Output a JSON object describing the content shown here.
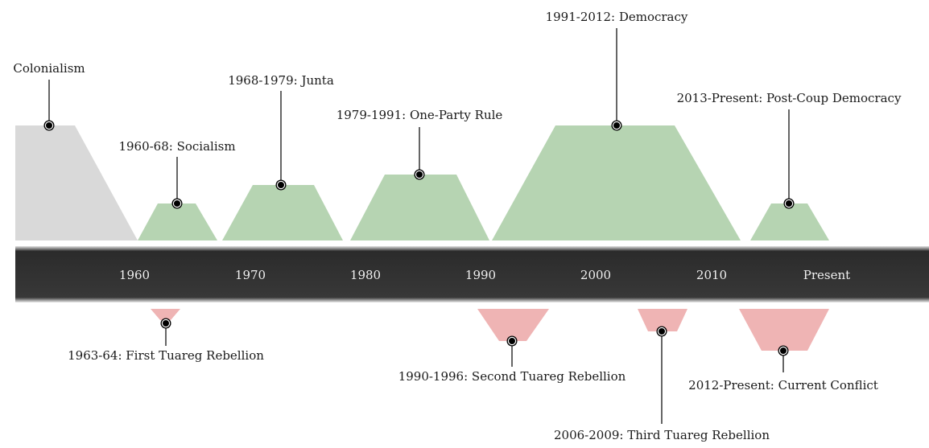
{
  "timeline": {
    "axis_ticks": [
      "1960",
      "1970",
      "1980",
      "1990",
      "2000",
      "2010",
      "Present"
    ],
    "periods": [
      {
        "label": "Colonialism",
        "color": "#d9d9d9",
        "kind": "colonial"
      },
      {
        "label": "1960-68: Socialism",
        "color": "#b6d4b2",
        "kind": "regime"
      },
      {
        "label": "1968-1979: Junta",
        "color": "#b6d4b2",
        "kind": "regime"
      },
      {
        "label": "1979-1991: One-Party Rule",
        "color": "#b6d4b2",
        "kind": "regime"
      },
      {
        "label": "1991-2012: Democracy",
        "color": "#b6d4b2",
        "kind": "regime"
      },
      {
        "label": "2013-Present: Post-Coup Democracy",
        "color": "#b6d4b2",
        "kind": "regime"
      }
    ],
    "conflicts": [
      {
        "label": "1963-64: First Tuareg Rebellion",
        "color": "#efb4b4"
      },
      {
        "label": "1990-1996: Second Tuareg Rebellion",
        "color": "#efb4b4"
      },
      {
        "label": "2006-2009: Third Tuareg Rebellion",
        "color": "#efb4b4"
      },
      {
        "label": "2012-Present: Current Conflict",
        "color": "#efb4b4"
      }
    ],
    "colors": {
      "band": "#333333",
      "band_text": "#f0f0f0",
      "marker": "#000000",
      "leader_line": "#000000"
    }
  }
}
